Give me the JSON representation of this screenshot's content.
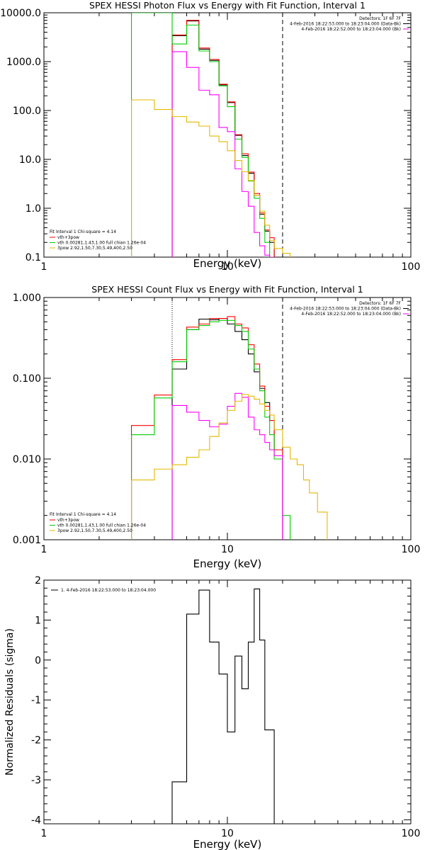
{
  "chart_data": [
    {
      "id": "photon",
      "type": "line",
      "title": "SPEX HESSI Photon Flux vs Energy with Fit Function, Interval 1",
      "xlabel": "Energy (keV)",
      "ylabel": "",
      "xscale": "log",
      "yscale": "log",
      "xlim": [
        1,
        100
      ],
      "ylim": [
        0.1,
        10000
      ],
      "xticks": [
        {
          "v": 1,
          "label": "1"
        },
        {
          "v": 10,
          "label": "10"
        },
        {
          "v": 100,
          "label": "100"
        }
      ],
      "yticks": [
        {
          "v": 0.1,
          "label": "0.1"
        },
        {
          "v": 1,
          "label": "1.0"
        },
        {
          "v": 10,
          "label": "10.0"
        },
        {
          "v": 100,
          "label": "100.0"
        },
        {
          "v": 1000,
          "label": "1000.0"
        },
        {
          "v": 10000,
          "label": "10000.0"
        }
      ],
      "vlines": [
        {
          "x": 5.0,
          "style": "dotted",
          "color": "#000000"
        },
        {
          "x": 20.0,
          "style": "dashed",
          "color": "#000000"
        }
      ],
      "header": [
        {
          "text": "Detectors: 1F 6F 7F",
          "color": "#000000"
        },
        {
          "text": "4-Feb-2016 18:22:53.000 to 18:23:04.000 (Data-Bk)",
          "color": "#000000"
        },
        {
          "text": "4-Feb-2016 18:22:52.000 to 18:23:04.000 (Bk)",
          "color": "#ff00ff"
        }
      ],
      "legend_title": "Fit Interval  1     Chi-square = 4.14",
      "legend_items": [
        {
          "label": "vth+3pow",
          "color": "#ff0000"
        },
        {
          "label": "vth 0.00281,1.43,1.00  full chian 1.26e-04",
          "color": "#00cc00"
        },
        {
          "label": "3pow 2.92,1.50,7.30,5.49,400,2.50",
          "color": "#e6b800"
        }
      ],
      "bin_edges": [
        3.0,
        4.0,
        5.0,
        6.0,
        7.0,
        8.0,
        9.0,
        10.0,
        11.0,
        12.0,
        13.0,
        14.0,
        15.0,
        16.0,
        17.0,
        18.0,
        20.0,
        22.0
      ],
      "series": [
        {
          "color": "#000000",
          "values": [
            null,
            null,
            3400,
            6800,
            1800,
            1060,
            335,
            145,
            31,
            12,
            5.2,
            1.85,
            0.75,
            0.34,
            0.2,
            null,
            null
          ]
        },
        {
          "color": "#ff0000",
          "values": [
            null,
            null,
            3500,
            7000,
            1900,
            1110,
            345,
            150,
            32,
            13,
            5.5,
            2.0,
            0.8,
            0.36,
            0.25,
            null,
            null
          ]
        },
        {
          "color": "#00cc00",
          "values": [
            10000,
            10000,
            2300,
            5600,
            1650,
            1000,
            320,
            120,
            26,
            11,
            3.6,
            1.6,
            0.62,
            0.2,
            0.1,
            null,
            null
          ]
        },
        {
          "color": "#ff00ff",
          "values": [
            null,
            null,
            1600,
            760,
            260,
            210,
            45,
            37,
            6.4,
            2.2,
            1.1,
            0.32,
            0.17,
            0.11,
            0.1,
            null,
            null
          ]
        },
        {
          "color": "#e6b800",
          "values": [
            165,
            105,
            75,
            58,
            48,
            30,
            23,
            15,
            9.5,
            5.6,
            3.7,
            1.85,
            0.87,
            0.45,
            0.22,
            0.15,
            0.12
          ]
        }
      ]
    },
    {
      "id": "count",
      "type": "line",
      "title": "SPEX HESSI Count Flux vs Energy with Fit Function, Interval 1",
      "xlabel": "Energy (keV)",
      "ylabel": "",
      "xscale": "log",
      "yscale": "log",
      "xlim": [
        1,
        100
      ],
      "ylim": [
        0.001,
        1.0
      ],
      "xticks": [
        {
          "v": 1,
          "label": "1"
        },
        {
          "v": 10,
          "label": "10"
        },
        {
          "v": 100,
          "label": "100"
        }
      ],
      "yticks": [
        {
          "v": 0.001,
          "label": "0.001"
        },
        {
          "v": 0.01,
          "label": "0.010"
        },
        {
          "v": 0.1,
          "label": "0.100"
        },
        {
          "v": 1,
          "label": "1.000"
        }
      ],
      "vlines": [
        {
          "x": 5.0,
          "style": "dotted",
          "color": "#000000"
        },
        {
          "x": 20.0,
          "style": "dashed",
          "color": "#000000"
        }
      ],
      "header": [
        {
          "text": "Detectors: 1F 6F 7F",
          "color": "#000000"
        },
        {
          "text": "4-Feb-2016 18:22:53.000 to 18:23:04.000 (Data-Bk)",
          "color": "#000000"
        },
        {
          "text": "4-Feb-2016 18:22:52.000 to 18:23:04.000 (Bk)",
          "color": "#ff00ff"
        }
      ],
      "legend_title": "Fit Interval  1     Chi-square = 4.14",
      "legend_items": [
        {
          "label": "vth+3pow",
          "color": "#ff0000"
        },
        {
          "label": "vth 0.00281,1.43,1.00  full chian 1.26e-04",
          "color": "#00cc00"
        },
        {
          "label": "3pow 2.92,1.50,7.30,5.49,400,2.50",
          "color": "#e6b800"
        }
      ],
      "bin_edges": [
        3.0,
        4.0,
        5.0,
        6.0,
        7.0,
        8.0,
        9.0,
        10.0,
        11.0,
        12.0,
        13.0,
        14.0,
        15.0,
        16.0,
        17.0,
        18.0,
        20.0,
        22.0,
        24.0,
        26.0,
        28.0,
        31.0,
        35.0
      ],
      "series": [
        {
          "color": "#000000",
          "values": [
            null,
            null,
            0.13,
            0.4,
            0.54,
            0.53,
            0.55,
            0.47,
            0.38,
            0.3,
            0.2,
            0.12,
            0.075,
            0.05,
            0.03,
            0.013,
            null,
            null,
            null,
            null,
            null,
            null
          ]
        },
        {
          "color": "#ff0000",
          "values": [
            0.026,
            0.062,
            0.17,
            0.43,
            0.47,
            0.55,
            0.55,
            0.58,
            0.47,
            0.42,
            0.26,
            0.15,
            0.08,
            0.045,
            0.03,
            0.013,
            null,
            null,
            null,
            null,
            null,
            null
          ]
        },
        {
          "color": "#00cc00",
          "values": [
            0.02,
            0.057,
            0.16,
            0.4,
            0.45,
            0.5,
            0.52,
            0.52,
            0.45,
            0.38,
            0.23,
            0.13,
            0.07,
            0.033,
            0.02,
            0.01,
            0.002,
            null,
            null,
            null,
            null,
            null
          ]
        },
        {
          "color": "#ff00ff",
          "values": [
            null,
            null,
            0.046,
            0.038,
            0.03,
            0.025,
            0.027,
            0.045,
            0.065,
            0.058,
            0.033,
            0.023,
            0.02,
            0.016,
            0.013,
            0.011,
            null,
            null,
            null,
            null,
            null,
            null
          ]
        },
        {
          "color": "#e6b800",
          "values": [
            0.0055,
            0.0075,
            0.0085,
            0.0105,
            0.013,
            0.019,
            0.028,
            0.04,
            0.052,
            0.063,
            0.06,
            0.055,
            0.048,
            0.04,
            0.035,
            0.023,
            0.014,
            0.01,
            0.0085,
            0.0055,
            0.0038,
            0.0022
          ]
        }
      ]
    },
    {
      "id": "residuals",
      "type": "line",
      "title": "",
      "xlabel": "Energy (keV)",
      "ylabel": "Normalized Residuals (sigma)",
      "xscale": "log",
      "yscale": "linear",
      "xlim": [
        1,
        100
      ],
      "ylim": [
        -4.1,
        2.0
      ],
      "xticks": [
        {
          "v": 1,
          "label": "1"
        },
        {
          "v": 10,
          "label": "10"
        },
        {
          "v": 100,
          "label": "100"
        }
      ],
      "yticks": [
        {
          "v": -4,
          "label": "-4"
        },
        {
          "v": -3,
          "label": "-3"
        },
        {
          "v": -2,
          "label": "-2"
        },
        {
          "v": -1,
          "label": "-1"
        },
        {
          "v": 0,
          "label": "0"
        },
        {
          "v": 1,
          "label": "1"
        },
        {
          "v": 2,
          "label": "2"
        }
      ],
      "vlines": [],
      "header": [],
      "legend_title": "",
      "legend_items": [
        {
          "label": "1.  4-Feb-2016 18:22:53.000 to 18:23:04.000",
          "color": "#000000"
        }
      ],
      "bin_edges": [
        5.0,
        6.0,
        7.0,
        8.0,
        9.0,
        10.0,
        11.0,
        12.0,
        13.0,
        14.0,
        15.0,
        16.0,
        17.0,
        18.0,
        20.0
      ],
      "series": [
        {
          "color": "#000000",
          "values": [
            -3.05,
            1.15,
            1.75,
            0.45,
            -0.35,
            -1.8,
            0.1,
            -0.72,
            0.45,
            1.78,
            0.5,
            -1.75,
            -1.75,
            -4.1
          ]
        }
      ]
    }
  ]
}
